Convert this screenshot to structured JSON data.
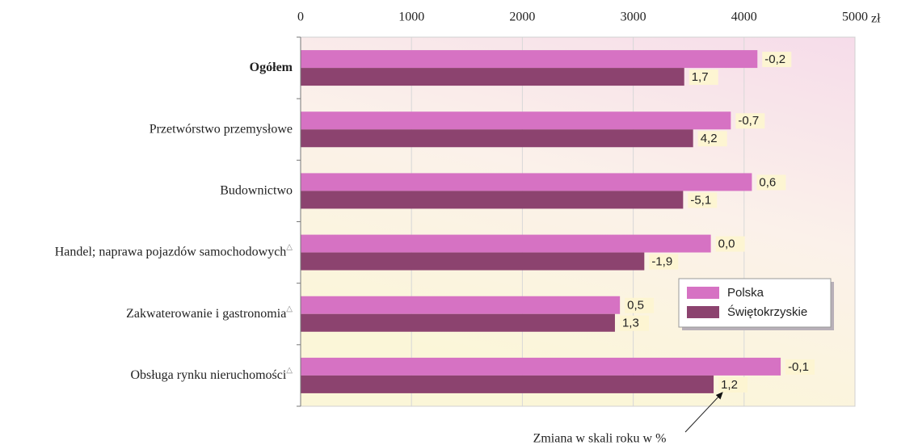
{
  "chart_data": {
    "type": "barh",
    "unit": "zł",
    "categories": [
      "Ogółem",
      "Przetwórstwo przemysłowe",
      "Budownictwo",
      "Handel; naprawa pojazdów samochodowych",
      "Zakwaterowanie i gastronomia",
      "Obsługa rynku nieruchomości"
    ],
    "category_notes": [
      null,
      null,
      null,
      "△",
      "△",
      "△"
    ],
    "series": [
      {
        "name": "Polska",
        "color": "#d672c3",
        "values": [
          4120,
          3880,
          4070,
          3700,
          2880,
          4330
        ],
        "change_labels": [
          "-0,2",
          "-0,7",
          "0,6",
          "0,0",
          "0,5",
          "-0,1"
        ]
      },
      {
        "name": "Świętokrzyskie",
        "color": "#8c436f",
        "values": [
          3460,
          3540,
          3450,
          3100,
          2835,
          3725
        ],
        "change_labels": [
          "1,7",
          "4,2",
          "-5,1",
          "-1,9",
          "1,3",
          "1,2"
        ]
      }
    ],
    "annotation": "Zmiana w skali roku w %",
    "xlim": [
      0,
      5000
    ],
    "xticks": [
      0,
      1000,
      2000,
      3000,
      4000,
      5000
    ],
    "grid": true,
    "legend": "lower right"
  }
}
